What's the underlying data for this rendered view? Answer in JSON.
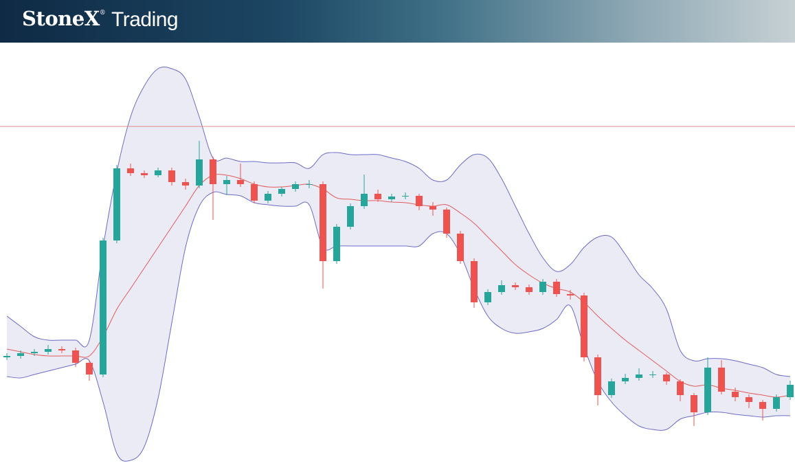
{
  "header": {
    "brand": "StoneX",
    "brand_mark": "®",
    "product": "Trading"
  },
  "chart_data": {
    "type": "candlestick",
    "ylim": [
      0,
      620
    ],
    "reference_line": {
      "value": 500,
      "color": "#e58a8a"
    },
    "up_color": "#26a69a",
    "down_color": "#ef5350",
    "band_color": "#6b6bc9",
    "band_fill": "#e4e4f1",
    "middle_color": "#e25b5b",
    "ohlc": [
      [
        164,
        170,
        160,
        166
      ],
      [
        166,
        174,
        162,
        170
      ],
      [
        170,
        176,
        166,
        172
      ],
      [
        172,
        182,
        168,
        176
      ],
      [
        176,
        180,
        170,
        174
      ],
      [
        174,
        178,
        150,
        156
      ],
      [
        156,
        160,
        130,
        139
      ],
      [
        139,
        338,
        135,
        334
      ],
      [
        334,
        444,
        330,
        439
      ],
      [
        439,
        446,
        428,
        432
      ],
      [
        432,
        436,
        425,
        429
      ],
      [
        429,
        440,
        426,
        436
      ],
      [
        436,
        440,
        414,
        419
      ],
      [
        419,
        424,
        408,
        414
      ],
      [
        414,
        479,
        410,
        452
      ],
      [
        452,
        456,
        364,
        416
      ],
      [
        416,
        428,
        400,
        422
      ],
      [
        422,
        446,
        412,
        416
      ],
      [
        416,
        420,
        388,
        392
      ],
      [
        392,
        406,
        388,
        402
      ],
      [
        402,
        412,
        398,
        409
      ],
      [
        409,
        420,
        405,
        416
      ],
      [
        416,
        422,
        410,
        416
      ],
      [
        416,
        420,
        264,
        304
      ],
      [
        304,
        358,
        300,
        354
      ],
      [
        354,
        388,
        350,
        384
      ],
      [
        384,
        430,
        380,
        402
      ],
      [
        402,
        408,
        390,
        394
      ],
      [
        394,
        402,
        390,
        398
      ],
      [
        398,
        404,
        394,
        399
      ],
      [
        399,
        402,
        378,
        384
      ],
      [
        384,
        390,
        370,
        379
      ],
      [
        379,
        382,
        338,
        344
      ],
      [
        344,
        348,
        300,
        304
      ],
      [
        304,
        308,
        236,
        244
      ],
      [
        244,
        263,
        240,
        259
      ],
      [
        259,
        276,
        255,
        269
      ],
      [
        269,
        273,
        262,
        266
      ],
      [
        266,
        270,
        255,
        259
      ],
      [
        259,
        278,
        255,
        274
      ],
      [
        274,
        278,
        252,
        256
      ],
      [
        256,
        262,
        248,
        254
      ],
      [
        254,
        258,
        158,
        164
      ],
      [
        164,
        168,
        94,
        109
      ],
      [
        109,
        133,
        105,
        129
      ],
      [
        129,
        140,
        125,
        134
      ],
      [
        134,
        148,
        130,
        139
      ],
      [
        139,
        144,
        134,
        139
      ],
      [
        139,
        142,
        124,
        129
      ],
      [
        129,
        132,
        100,
        109
      ],
      [
        109,
        112,
        64,
        84
      ],
      [
        84,
        164,
        80,
        149
      ],
      [
        149,
        160,
        110,
        114
      ],
      [
        114,
        120,
        100,
        106
      ],
      [
        106,
        110,
        90,
        99
      ],
      [
        99,
        102,
        72,
        89
      ],
      [
        89,
        110,
        85,
        106
      ],
      [
        106,
        130,
        102,
        124
      ]
    ],
    "upper_band": [
      224,
      209,
      194,
      189,
      189,
      189,
      189,
      324,
      434,
      514,
      559,
      584,
      584,
      569,
      514,
      454,
      454,
      449,
      449,
      447,
      447,
      447,
      439,
      459,
      462,
      459,
      459,
      459,
      454,
      449,
      439,
      422,
      422,
      444,
      459,
      454,
      424,
      384,
      344,
      309,
      289,
      299,
      324,
      339,
      339,
      314,
      284,
      264,
      234,
      174,
      159,
      162,
      162,
      159,
      154,
      149,
      139,
      136
    ],
    "middle_band": [
      176,
      172,
      168,
      166,
      166,
      166,
      166,
      194,
      234,
      264,
      294,
      324,
      354,
      384,
      414,
      429,
      429,
      424,
      416,
      412,
      412,
      414,
      416,
      409,
      396,
      394,
      392,
      392,
      390,
      389,
      386,
      384,
      386,
      374,
      359,
      339,
      319,
      299,
      284,
      272,
      264,
      259,
      244,
      224,
      206,
      189,
      174,
      159,
      144,
      129,
      122,
      124,
      119,
      116,
      112,
      109,
      106,
      109
    ],
    "lower_band": [
      136,
      134,
      139,
      144,
      149,
      154,
      159,
      99,
      24,
      14,
      34,
      104,
      214,
      324,
      384,
      404,
      401,
      399,
      389,
      386,
      384,
      384,
      386,
      324,
      326,
      326,
      326,
      326,
      326,
      326,
      326,
      344,
      344,
      314,
      264,
      224,
      206,
      199,
      201,
      206,
      219,
      239,
      179,
      129,
      99,
      79,
      64,
      59,
      59,
      74,
      79,
      84,
      84,
      81,
      79,
      77,
      79,
      79
    ]
  }
}
